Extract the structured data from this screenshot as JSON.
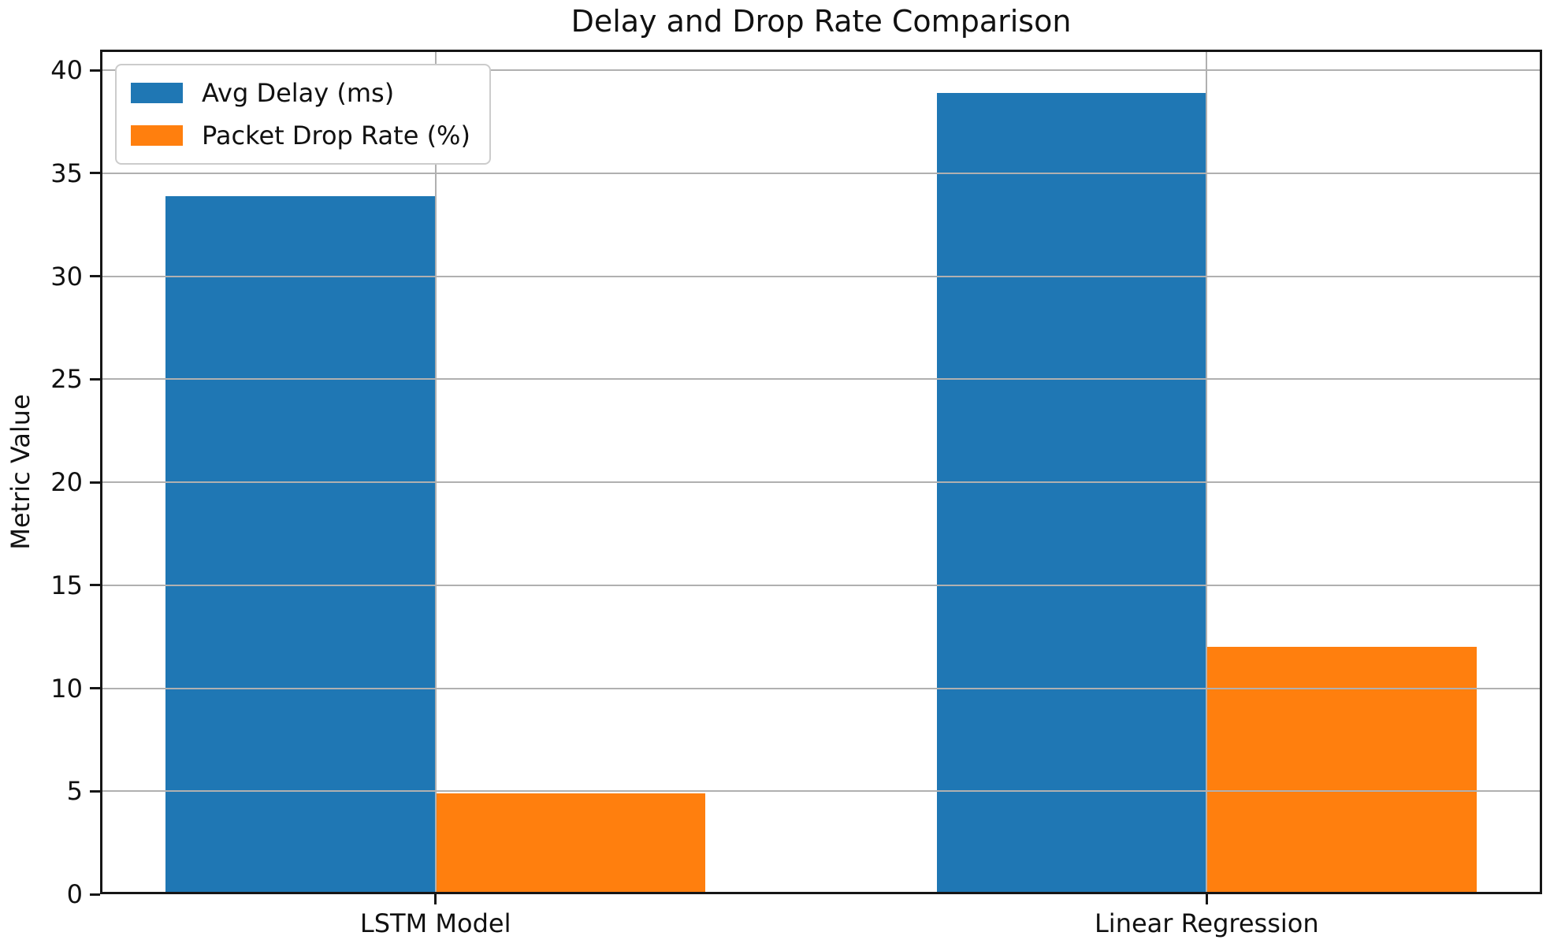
{
  "chart_data": {
    "type": "bar",
    "title": "Delay and Drop Rate Comparison",
    "xlabel": "",
    "ylabel": "Metric Value",
    "categories": [
      "LSTM Model",
      "Linear Regression"
    ],
    "series": [
      {
        "name": "Avg Delay (ms)",
        "color": "#1f77b4",
        "values": [
          33.9,
          38.9
        ]
      },
      {
        "name": "Packet Drop Rate (%)",
        "color": "#ff7f0e",
        "values": [
          4.9,
          12.0
        ]
      }
    ],
    "bar_width": 0.35,
    "ylim": [
      0,
      41
    ],
    "yticks": [
      0,
      5,
      10,
      15,
      20,
      25,
      30,
      35,
      40
    ],
    "xlim": [
      -0.435,
      1.435
    ],
    "grid": true,
    "grid_color": "#b0b0b0",
    "spine_color": "#161616",
    "legend_position": "upper left"
  }
}
